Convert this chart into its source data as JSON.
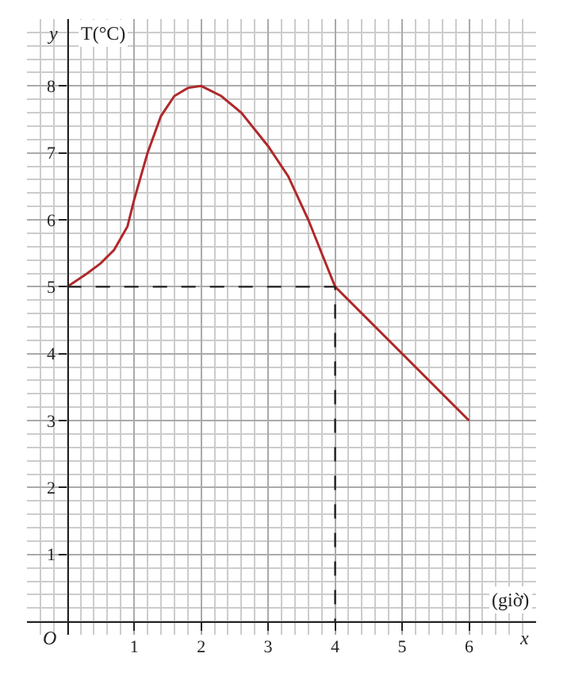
{
  "chart_data": {
    "type": "line",
    "xlabel": "(giờ)",
    "ylabel": "T(°C)",
    "annotations": [
      "y",
      "x",
      "O"
    ],
    "series": [
      {
        "color": "#b0282a",
        "x": [
          0,
          0.3,
          0.5,
          0.7,
          0.9,
          1.0,
          1.2,
          1.4,
          1.6,
          1.8,
          2.0,
          2.3,
          2.6,
          3.0,
          3.3,
          3.6,
          3.8,
          4.0,
          6.0
        ],
        "values": [
          5,
          5.2,
          5.35,
          5.55,
          5.9,
          6.3,
          7.0,
          7.55,
          7.85,
          7.97,
          8,
          7.85,
          7.6,
          7.1,
          6.65,
          6.0,
          5.5,
          5,
          3
        ]
      },
      {
        "color": "#222222",
        "line_style": "dashed",
        "x": [
          0,
          4,
          4
        ],
        "values": [
          5,
          5,
          0
        ]
      }
    ],
    "xlim": [
      -0.6,
      7.0
    ],
    "ylim": [
      -0.2,
      9.0
    ],
    "xticks": [
      1,
      2,
      3,
      4,
      5,
      6
    ],
    "yticks": [
      1,
      2,
      3,
      4,
      5,
      6,
      7,
      8
    ],
    "grid": true,
    "marker": "none",
    "line_style": "solid"
  }
}
